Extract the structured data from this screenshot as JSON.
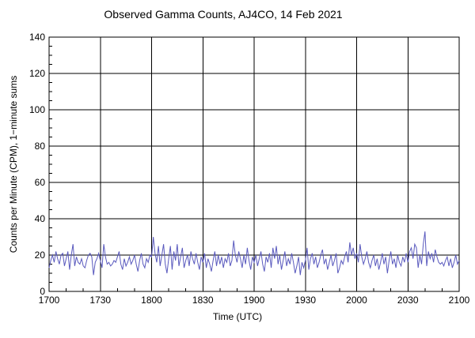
{
  "page": {
    "background_color": "#ffffff",
    "axis_color": "#000000",
    "grid_color": "#000000"
  },
  "chart_data": {
    "type": "line",
    "title": "Observed Gamma Counts, AJ4CO, 14 Feb 2021",
    "xlabel": "Time (UTC)",
    "ylabel": "Counts per Minute (CPM), 1−minute sums",
    "line_color": "#5a5abe",
    "grid": true,
    "legend": "none",
    "xlim_minutes": [
      0,
      240
    ],
    "ylim": [
      0,
      140
    ],
    "x_tick_labels": [
      "1700",
      "1730",
      "1800",
      "1830",
      "1900",
      "1930",
      "2000",
      "2030",
      "2100"
    ],
    "x_tick_positions_minutes": [
      0,
      30,
      60,
      90,
      120,
      150,
      180,
      210,
      240
    ],
    "x_minor_step_minutes": 10,
    "y_tick_labels": [
      "0",
      "20",
      "40",
      "60",
      "80",
      "100",
      "120",
      "140"
    ],
    "y_tick_values": [
      0,
      20,
      40,
      60,
      80,
      100,
      120,
      140
    ],
    "y_minor_step": 5,
    "x_start_time_utc": "1700",
    "x_step_minutes": 1,
    "values": [
      13,
      17,
      20,
      16,
      22,
      18,
      15,
      20,
      21,
      14,
      18,
      22,
      12,
      20,
      26,
      14,
      19,
      16,
      15,
      18,
      14,
      13,
      17,
      20,
      21,
      19,
      9,
      16,
      18,
      21,
      17,
      13,
      26,
      19,
      15,
      16,
      14,
      15,
      17,
      16,
      19,
      22,
      15,
      12,
      18,
      14,
      16,
      19,
      15,
      17,
      20,
      15,
      11,
      17,
      21,
      15,
      13,
      18,
      16,
      20,
      19,
      30,
      21,
      16,
      25,
      14,
      20,
      26,
      15,
      10,
      18,
      25,
      12,
      22,
      17,
      26,
      14,
      19,
      24,
      13,
      17,
      20,
      14,
      22,
      18,
      15,
      21,
      16,
      12,
      19,
      16,
      21,
      13,
      18,
      15,
      11,
      17,
      22,
      14,
      20,
      15,
      19,
      13,
      18,
      16,
      21,
      14,
      17,
      28,
      20,
      16,
      22,
      18,
      13,
      20,
      15,
      24,
      17,
      12,
      19,
      16,
      20,
      14,
      18,
      22,
      15,
      11,
      19,
      16,
      21,
      13,
      24,
      18,
      25,
      15,
      20,
      12,
      17,
      22,
      14,
      18,
      15,
      21,
      16,
      10,
      14,
      19,
      9,
      16,
      13,
      17,
      24,
      12,
      18,
      21,
      15,
      19,
      13,
      16,
      20,
      23,
      15,
      18,
      12,
      16,
      20,
      14,
      17,
      21,
      10,
      13,
      17,
      15,
      19,
      22,
      16,
      27,
      20,
      24,
      18,
      21,
      16,
      26,
      19,
      15,
      18,
      22,
      16,
      13,
      17,
      20,
      14,
      18,
      12,
      16,
      21,
      15,
      19,
      10,
      17,
      22,
      15,
      18,
      13,
      20,
      16,
      14,
      19,
      16,
      21,
      16,
      22,
      24,
      18,
      26,
      24,
      13,
      20,
      15,
      26,
      33,
      14,
      22,
      18,
      21,
      16,
      23,
      19,
      16,
      15,
      16,
      14,
      17,
      19,
      14,
      18,
      13,
      16,
      20,
      15,
      17
    ]
  }
}
